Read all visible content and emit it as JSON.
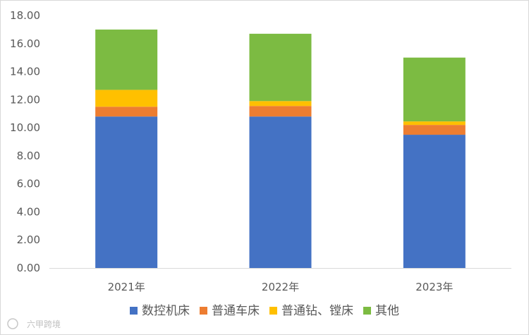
{
  "chart_data": {
    "type": "bar",
    "stacked": true,
    "categories": [
      "2021年",
      "2022年",
      "2023年"
    ],
    "series": [
      {
        "name": "数控机床",
        "color": "#4472C4",
        "values": [
          10.8,
          10.8,
          9.5
        ]
      },
      {
        "name": "普通车床",
        "color": "#ED7D31",
        "values": [
          0.7,
          0.75,
          0.7
        ]
      },
      {
        "name": "普通钻、镗床",
        "color": "#FFC000",
        "values": [
          1.2,
          0.35,
          0.25
        ]
      },
      {
        "name": "其他",
        "color": "#7CBB42",
        "values": [
          4.3,
          4.8,
          4.55
        ]
      }
    ],
    "yticks": [
      "0.00",
      "2.00",
      "4.00",
      "6.00",
      "8.00",
      "10.00",
      "12.00",
      "14.00",
      "16.00",
      "18.00"
    ],
    "ylim": [
      0,
      18
    ],
    "grid": false,
    "legend_position": "bottom"
  },
  "watermark": {
    "text": "六甲跨境"
  }
}
